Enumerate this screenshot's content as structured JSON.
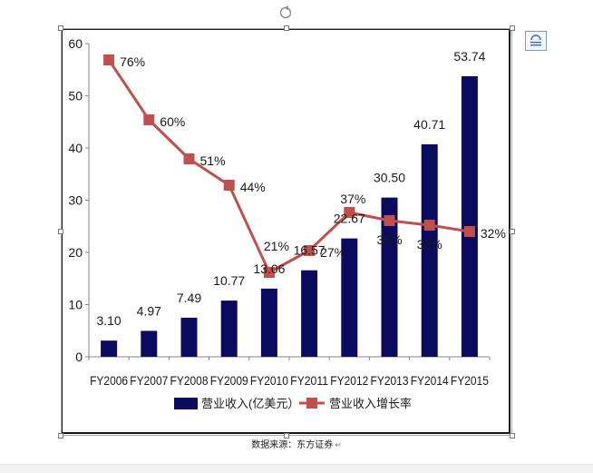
{
  "chart_data": {
    "type": "bar+line",
    "title": "",
    "categories": [
      "FY2006",
      "FY2007",
      "FY2008",
      "FY2009",
      "FY2010",
      "FY2011",
      "FY2012",
      "FY2013",
      "FY2014",
      "FY2015"
    ],
    "series": [
      {
        "name": "营业收入(亿美元）",
        "kind": "bar",
        "axis": "primary",
        "color": "#0a0a5e",
        "values": [
          3.1,
          4.97,
          7.49,
          10.77,
          13.06,
          16.57,
          22.67,
          30.5,
          40.71,
          53.74
        ],
        "labels": [
          "3.10",
          "4.97",
          "7.49",
          "10.77",
          "13.06",
          "16.57",
          "22.67",
          "30.50",
          "40.71",
          "53.74"
        ]
      },
      {
        "name": "营业收入增长率",
        "kind": "line",
        "axis": "secondary-hidden",
        "color": "#c0504d",
        "values": [
          76,
          60,
          51,
          44,
          21,
          27,
          37,
          35,
          33,
          32
        ],
        "labels": [
          "76%",
          "60%",
          "51%",
          "44%",
          "21%",
          "27%",
          "37%",
          "35%",
          "33%",
          "32%"
        ]
      }
    ],
    "y_axis": {
      "min": 0,
      "max": 60,
      "ticks": [
        "0",
        "10",
        "20",
        "30",
        "40",
        "50",
        "60"
      ]
    },
    "legend_position": "bottom",
    "grid": false
  },
  "source_note": "数据来源：东方证券",
  "source_note_mark": "↵",
  "ui": {
    "layout_icon": "layout-options-icon",
    "rotate_icon": "rotate-handle-icon"
  },
  "colors": {
    "bar": "#0a0a5e",
    "line": "#c0504d"
  }
}
